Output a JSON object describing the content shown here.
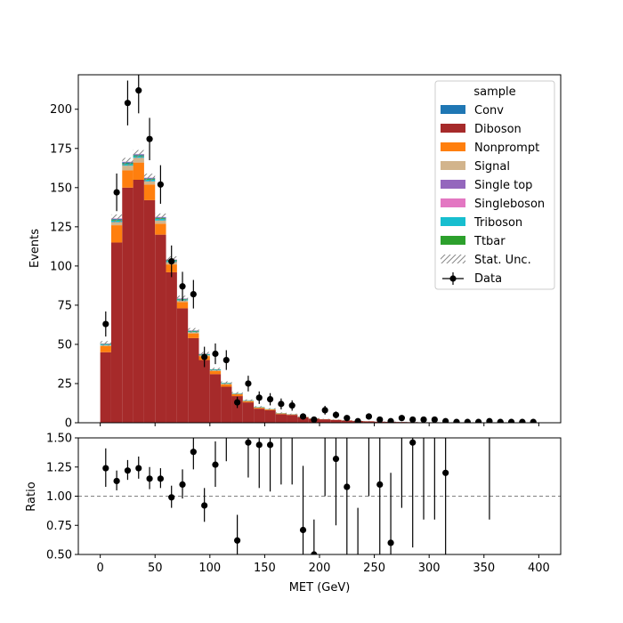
{
  "chart_data": [
    {
      "type": "bar",
      "stacked": true,
      "title": "",
      "ylabel": "Events",
      "xlim": [
        -20,
        420
      ],
      "ylim": [
        0,
        222
      ],
      "yticks": [
        0,
        25,
        50,
        75,
        100,
        125,
        150,
        175,
        200
      ],
      "bin_edges": [
        0,
        10,
        20,
        30,
        40,
        50,
        60,
        70,
        80,
        90,
        100,
        110,
        120,
        130,
        140,
        150,
        160,
        170,
        180,
        190,
        200,
        210,
        220,
        230,
        240,
        250,
        260,
        270,
        280,
        290,
        300,
        310,
        320,
        330,
        340,
        350,
        360,
        370,
        380,
        390,
        400
      ],
      "series": [
        {
          "name": "Diboson",
          "color": "#a62a2a",
          "values": [
            45,
            115,
            150,
            155,
            142,
            120,
            96,
            73,
            54,
            40,
            31,
            23,
            17,
            13,
            9,
            8,
            5.5,
            5,
            3.5,
            2.5,
            2.2,
            1.8,
            1.4,
            1.1,
            0.9,
            0.7,
            0.6,
            0.5,
            0.4,
            0.3,
            0.3,
            0.25,
            0.2,
            0.2,
            0.15,
            0.12,
            0.1,
            0.1,
            0.08,
            0.05
          ]
        },
        {
          "name": "Nonprompt",
          "color": "#ff7f0e",
          "values": [
            4,
            11,
            11,
            11,
            10,
            7,
            5,
            4,
            3,
            2.5,
            2,
            1.5,
            1.2,
            0.8,
            0.6,
            0.5,
            0.4,
            0.3,
            0.2,
            0.2,
            0.1,
            0.1,
            0.1,
            0.05,
            0.05,
            0,
            0,
            0,
            0,
            0,
            0,
            0,
            0,
            0,
            0,
            0,
            0,
            0,
            0,
            0
          ]
        },
        {
          "name": "Signal",
          "color": "#d2b48c",
          "values": [
            0.5,
            2,
            3,
            3,
            2,
            2,
            1.5,
            1,
            0.8,
            0.6,
            0.5,
            0.4,
            0.3,
            0.2,
            0.2,
            0.1,
            0.1,
            0.1,
            0,
            0,
            0,
            0,
            0,
            0,
            0,
            0,
            0,
            0,
            0,
            0,
            0,
            0,
            0,
            0,
            0,
            0,
            0,
            0,
            0,
            0
          ]
        },
        {
          "name": "Triboson",
          "color": "#17becf",
          "values": [
            0.5,
            1,
            1,
            1,
            1,
            1,
            0.8,
            0.6,
            0.4,
            0.4,
            0.3,
            0.3,
            0.2,
            0.2,
            0.2,
            0.1,
            0.1,
            0.1,
            0.1,
            0.1,
            0,
            0,
            0,
            0,
            0,
            0,
            0,
            0,
            0,
            0,
            0,
            0,
            0,
            0,
            0,
            0,
            0,
            0,
            0,
            0
          ]
        },
        {
          "name": "Ttbar",
          "color": "#2ca02c",
          "values": [
            0.2,
            0.5,
            0.5,
            0.5,
            0.5,
            0.5,
            0.4,
            0.3,
            0.3,
            0.2,
            0.2,
            0.2,
            0.1,
            0.1,
            0.1,
            0.1,
            0.1,
            0,
            0,
            0,
            0,
            0,
            0,
            0,
            0,
            0,
            0,
            0,
            0,
            0,
            0,
            0,
            0,
            0,
            0,
            0,
            0,
            0,
            0,
            0
          ]
        },
        {
          "name": "Conv",
          "color": "#1f77b4",
          "values": [
            0.2,
            0.5,
            0.6,
            0.6,
            0.5,
            0.4,
            0.3,
            0.2,
            0.2,
            0.1,
            0.1,
            0.1,
            0,
            0,
            0,
            0,
            0,
            0,
            0,
            0,
            0,
            0,
            0,
            0,
            0,
            0,
            0,
            0,
            0,
            0,
            0,
            0,
            0,
            0,
            0,
            0,
            0,
            0,
            0,
            0
          ]
        },
        {
          "name": "Single top",
          "color": "#9467bd",
          "values": [
            0.1,
            0.2,
            0.2,
            0.2,
            0.2,
            0.2,
            0.1,
            0.1,
            0.1,
            0.1,
            0,
            0,
            0,
            0,
            0,
            0,
            0,
            0,
            0,
            0,
            0,
            0,
            0,
            0,
            0,
            0,
            0,
            0,
            0,
            0,
            0,
            0,
            0,
            0,
            0,
            0,
            0,
            0,
            0,
            0
          ]
        },
        {
          "name": "Singleboson",
          "color": "#e377c2",
          "values": [
            0.1,
            0.2,
            0.2,
            0.2,
            0.2,
            0.2,
            0.1,
            0.1,
            0.1,
            0.1,
            0,
            0,
            0,
            0,
            0,
            0,
            0,
            0,
            0,
            0,
            0,
            0,
            0,
            0,
            0,
            0,
            0,
            0,
            0,
            0,
            0,
            0,
            0,
            0,
            0,
            0,
            0,
            0,
            0,
            0
          ]
        }
      ],
      "stat_unc": [
        1.5,
        2.5,
        2.5,
        2.5,
        2.5,
        2.2,
        2,
        1.8,
        1.5,
        1.2,
        1,
        0.9,
        0.8,
        0.6,
        0.5,
        0.5,
        0.4,
        0.3,
        0.3,
        0.2,
        0.2,
        0.2,
        0.2,
        0.1,
        0.1,
        0.1,
        0.1,
        0.1,
        0.1,
        0.1,
        0.1,
        0.1,
        0.1,
        0.1,
        0.1,
        0.1,
        0.1,
        0.1,
        0.1,
        0.1
      ],
      "data": {
        "name": "Data",
        "x": [
          5,
          15,
          25,
          35,
          45,
          55,
          65,
          75,
          85,
          95,
          105,
          115,
          125,
          135,
          145,
          155,
          165,
          175,
          185,
          195,
          205,
          215,
          225,
          235,
          245,
          255,
          265,
          275,
          285,
          295,
          305,
          315,
          325,
          335,
          345,
          355,
          365,
          375,
          385,
          395
        ],
        "y": [
          63,
          147,
          204,
          212,
          181,
          152,
          103,
          87,
          82,
          42,
          44,
          40,
          13,
          25,
          16,
          15,
          12,
          11,
          4,
          2,
          8,
          5,
          3,
          1,
          4,
          2,
          1,
          3,
          2,
          2,
          2,
          1,
          0.5,
          0.5,
          0.5,
          1,
          0.5,
          0.5,
          0.5,
          0.5
        ],
        "err": [
          8,
          12,
          14.3,
          14.6,
          13.5,
          12.3,
          10.1,
          9.3,
          9.1,
          6.5,
          6.6,
          6.3,
          3.6,
          5,
          4,
          3.9,
          3.5,
          3.3,
          2,
          1.4,
          2.8,
          2.2,
          1.7,
          1,
          2,
          1.4,
          1,
          1.7,
          1.4,
          1.4,
          1.4,
          1,
          0.7,
          0.7,
          0.7,
          1,
          0.7,
          0.7,
          0.7,
          0.7
        ]
      },
      "legend": {
        "title": "sample",
        "placement": "top-right",
        "entries": [
          "Conv",
          "Diboson",
          "Nonprompt",
          "Signal",
          "Single top",
          "Singleboson",
          "Triboson",
          "Ttbar",
          "Stat. Unc.",
          "Data"
        ]
      }
    },
    {
      "type": "scatter",
      "title": "",
      "xlabel": "MET (GeV)",
      "ylabel": "Ratio",
      "xlim": [
        -20,
        420
      ],
      "ylim": [
        0.5,
        1.5
      ],
      "xticks": [
        0,
        50,
        100,
        150,
        200,
        250,
        300,
        350,
        400
      ],
      "yticks": [
        0.5,
        0.75,
        1.0,
        1.25,
        1.5
      ],
      "ytick_labels": [
        "0.50",
        "0.75",
        "1.00",
        "1.25",
        "1.50"
      ],
      "reference_line": 1.0,
      "x": [
        5,
        15,
        25,
        35,
        45,
        55,
        65,
        75,
        85,
        95,
        105,
        115,
        125,
        135,
        145,
        155,
        165,
        175,
        185,
        195,
        205,
        215,
        225,
        235,
        245,
        255,
        265,
        275,
        285,
        295,
        305,
        315,
        325,
        335,
        345,
        355,
        365,
        375,
        385,
        395
      ],
      "y": [
        1.24,
        1.13,
        1.22,
        1.24,
        1.15,
        1.15,
        0.99,
        1.1,
        1.38,
        0.92,
        1.27,
        1.6,
        0.62,
        1.46,
        1.44,
        1.44,
        1.6,
        1.6,
        0.71,
        0.5,
        1.6,
        1.32,
        1.08,
        0.45,
        1.6,
        1.1,
        0.6,
        1.6,
        1.46,
        1.6,
        1.6,
        1.2,
        null,
        null,
        null,
        1.6,
        null,
        null,
        null,
        null
      ],
      "err_low": [
        0.16,
        0.08,
        0.08,
        0.09,
        0.09,
        0.08,
        0.09,
        0.12,
        0.15,
        0.14,
        0.19,
        0.3,
        0.22,
        0.3,
        0.37,
        0.4,
        0.5,
        0.5,
        0.4,
        0.3,
        0.6,
        0.57,
        0.6,
        0.45,
        0.6,
        0.7,
        0.6,
        0.7,
        0.9,
        0.8,
        0.8,
        0.7,
        null,
        null,
        null,
        0.8,
        null,
        null,
        null,
        null
      ],
      "err_high": [
        0.17,
        0.09,
        0.09,
        0.1,
        0.1,
        0.09,
        0.1,
        0.13,
        0.16,
        0.15,
        0.2,
        0.3,
        0.22,
        0.3,
        0.37,
        0.4,
        0.5,
        0.5,
        0.55,
        0.3,
        0.6,
        0.57,
        0.6,
        0.45,
        0.6,
        0.7,
        0.6,
        0.7,
        0.9,
        0.8,
        0.8,
        0.7,
        null,
        null,
        null,
        0.8,
        null,
        null,
        null,
        null
      ]
    }
  ]
}
